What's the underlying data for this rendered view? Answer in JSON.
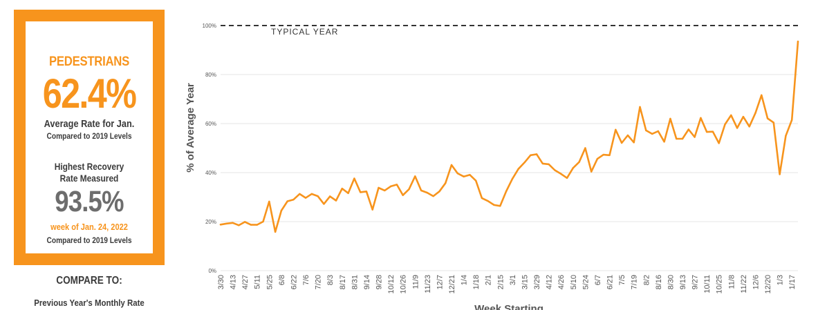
{
  "stat_panel": {
    "category": "PEDESTRIANS",
    "average_rate": "62.4%",
    "average_rate_label": "Average Rate for Jan.",
    "average_rate_sub": "Compared to 2019 Levels",
    "highest_label_line1": "Highest Recovery",
    "highest_label_line2": "Rate Measured",
    "highest_rate": "93.5%",
    "highest_week": "week of Jan. 24, 2022",
    "highest_sub": "Compared to 2019 Levels",
    "accent_color": "#f7941d",
    "dark_text_color": "#3a3a3a",
    "gray_value_color": "#6d6d6d"
  },
  "compare": {
    "title": "COMPARE TO:",
    "option": "Previous Year's Monthly Rate"
  },
  "chart_data": {
    "type": "line",
    "title": "",
    "xlabel": "Week Starting",
    "ylabel": "% of Average Year",
    "ylim": [
      0,
      100
    ],
    "yticks": [
      0,
      20,
      40,
      60,
      80,
      100
    ],
    "ytick_labels": [
      "0%",
      "20%",
      "40%",
      "60%",
      "80%",
      "100%"
    ],
    "grid": true,
    "line_color": "#f7941d",
    "reference_line": {
      "value": 100,
      "label": "TYPICAL YEAR",
      "style": "dashed"
    },
    "x_tick_labels": [
      "3/30",
      "4/13",
      "4/27",
      "5/11",
      "5/25",
      "6/8",
      "6/22",
      "7/6",
      "7/20",
      "8/3",
      "8/17",
      "8/31",
      "9/14",
      "9/28",
      "10/12",
      "10/26",
      "11/9",
      "11/23",
      "12/7",
      "12/21",
      "1/4",
      "1/18",
      "2/1",
      "2/15",
      "3/1",
      "3/15",
      "3/29",
      "4/12",
      "4/26",
      "5/10",
      "5/24",
      "6/7",
      "6/21",
      "7/5",
      "7/19",
      "8/2",
      "8/16",
      "8/30",
      "9/13",
      "9/27",
      "10/11",
      "10/25",
      "11/8",
      "11/22",
      "12/6",
      "12/20",
      "1/3",
      "1/17"
    ],
    "series": [
      {
        "values": [
          18.8,
          19.2,
          19.5,
          18.5,
          19.9,
          18.7,
          18.7,
          20.0,
          28.2,
          15.8,
          24.5,
          28.3,
          29.0,
          31.3,
          29.7,
          31.3,
          30.4,
          27.2,
          30.3,
          28.6,
          33.5,
          31.6,
          37.6,
          32.0,
          32.3,
          24.9,
          33.8,
          32.7,
          34.4,
          35.1,
          30.8,
          33.2,
          38.5,
          32.7,
          31.8,
          30.4,
          32.3,
          35.7,
          43.1,
          39.7,
          38.4,
          39.1,
          36.7,
          29.6,
          28.4,
          26.8,
          26.4,
          32.4,
          37.4,
          41.5,
          44.1,
          47.1,
          47.5,
          43.7,
          43.4,
          41.0,
          39.5,
          37.8,
          41.9,
          44.3,
          50.0,
          40.4,
          45.6,
          47.3,
          47.1,
          57.5,
          52.1,
          55.2,
          52.3,
          66.8,
          57.2,
          55.8,
          56.9,
          52.6,
          62.0,
          53.8,
          53.8,
          57.6,
          54.5,
          62.3,
          56.6,
          56.7,
          52.0,
          59.7,
          63.4,
          58.2,
          62.8,
          58.8,
          64.3,
          71.6,
          62.1,
          60.4,
          39.3,
          55.0,
          61.5,
          93.5
        ]
      }
    ]
  }
}
